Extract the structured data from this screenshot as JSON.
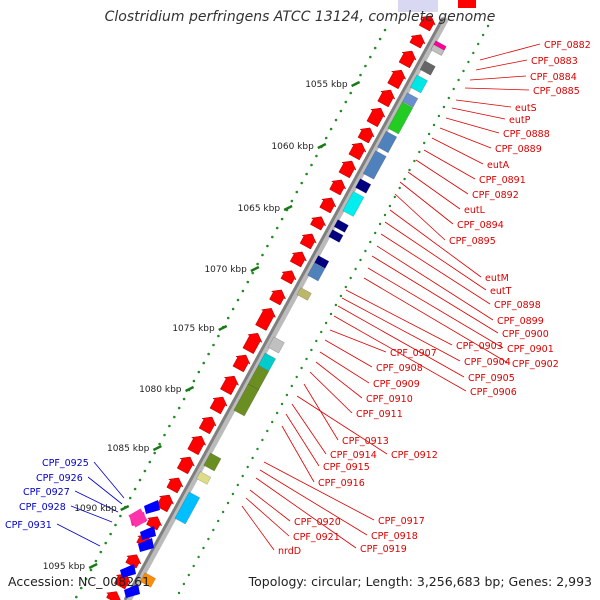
{
  "title": "Clostridium perfringens ATCC 13124, complete genome",
  "accession": "Accession: NC_008261",
  "topology": "Topology: circular; Length: 3,256,683 bp; Genes: 2,993",
  "ruler_ticks": [
    "1055 kbp",
    "1060 kbp",
    "1065 kbp",
    "1070 kbp",
    "1075 kbp",
    "1080 kbp",
    "1085 kbp",
    "1090 kbp",
    "1095 kbp"
  ],
  "colors": {
    "forward_cds": "#ff0000",
    "reverse_cds": "#0000ff",
    "backbone": "#999999",
    "ruler_dots": "#228b22",
    "label_red": "#dd0000",
    "label_blue": "#0000cc"
  },
  "right_labels": [
    "CPF_0882",
    "CPF_0883",
    "CPF_0884",
    "CPF_0885",
    "eutS",
    "eutP",
    "CPF_0888",
    "CPF_0889",
    "eutA",
    "CPF_0891",
    "CPF_0892",
    "eutL",
    "CPF_0894",
    "CPF_0895",
    "eutM",
    "eutT",
    "CPF_0898",
    "CPF_0899",
    "CPF_0900",
    "CPF_0901",
    "CPF_0902",
    "CPF_0903",
    "CPF_0904",
    "CPF_0905",
    "CPF_0906",
    "CPF_0907",
    "CPF_0908",
    "CPF_0909",
    "CPF_0910",
    "CPF_0911",
    "CPF_0913",
    "CPF_0912",
    "CPF_0914",
    "CPF_0915",
    "CPF_0916",
    "CPF_0917",
    "CPF_0918",
    "CPF_0919",
    "CPF_0920",
    "CPF_0921",
    "nrdD"
  ],
  "left_labels": [
    "CPF_0925",
    "CPF_0926",
    "CPF_0927",
    "CPF_0928",
    "CPF_0931"
  ]
}
